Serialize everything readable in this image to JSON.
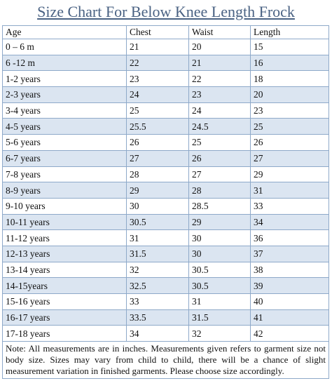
{
  "title": "Size Chart For Below Knee Length Frock",
  "table": {
    "header": [
      "Age",
      "Chest",
      "Waist",
      "Length"
    ],
    "rows": [
      [
        "0 – 6 m",
        "21",
        "20",
        "15"
      ],
      [
        "6 -12 m",
        "22",
        "21",
        "16"
      ],
      [
        "1-2 years",
        "23",
        "22",
        "18"
      ],
      [
        "2-3 years",
        "24",
        "23",
        "20"
      ],
      [
        "3-4 years",
        "25",
        "24",
        "23"
      ],
      [
        "4-5 years",
        "25.5",
        "24.5",
        "25"
      ],
      [
        "5-6 years",
        "26",
        "25",
        "26"
      ],
      [
        "6-7 years",
        "27",
        "26",
        "27"
      ],
      [
        "7-8 years",
        "28",
        "27",
        "29"
      ],
      [
        "8-9 years",
        "29",
        "28",
        "31"
      ],
      [
        "9-10 years",
        "30",
        "28.5",
        "33"
      ],
      [
        "10-11 years",
        "30.5",
        "29",
        "34"
      ],
      [
        "11-12 years",
        "31",
        "30",
        "36"
      ],
      [
        "12-13 years",
        "31.5",
        "30",
        "37"
      ],
      [
        "13-14 years",
        "32",
        "30.5",
        "38"
      ],
      [
        "14-15years",
        "32.5",
        "30.5",
        "39"
      ],
      [
        "15-16 years",
        "33",
        "31",
        "40"
      ],
      [
        "16-17 years",
        "33.5",
        "31.5",
        "41"
      ],
      [
        "17-18 years",
        "34",
        "32",
        "42"
      ]
    ]
  },
  "note": "Note: All measurements are in inches. Measurements given refers to garment size not body size. Sizes may vary from child to child, there will be a chance of slight measurement variation in finished garments. Please choose size accordingly."
}
